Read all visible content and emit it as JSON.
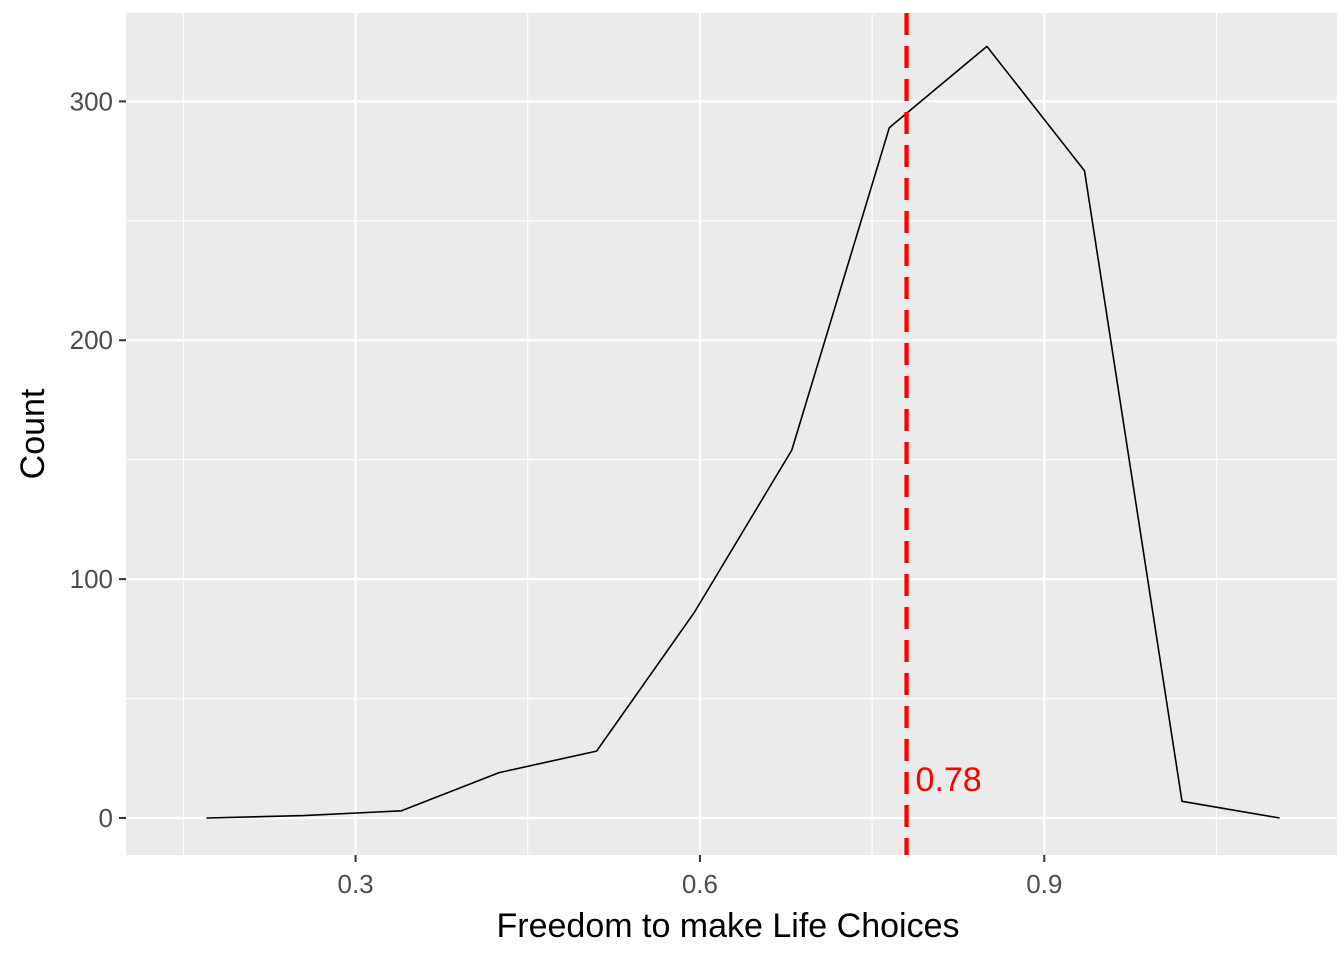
{
  "chart_data": {
    "type": "line",
    "title": "",
    "xlabel": "Freedom to make Life Choices",
    "ylabel": "Count",
    "x": [
      0.17,
      0.255,
      0.34,
      0.425,
      0.51,
      0.595,
      0.68,
      0.765,
      0.85,
      0.935,
      1.02,
      1.105
    ],
    "series": [
      {
        "values": [
          0,
          1,
          3,
          19,
          28,
          86,
          154,
          289,
          323,
          271,
          7,
          0
        ]
      }
    ],
    "xlim": [
      0.1,
      1.155
    ],
    "ylim": [
      -15.5,
      337
    ],
    "x_ticks": [
      0.3,
      0.6,
      0.9
    ],
    "x_tick_labels": [
      "0.3",
      "0.6",
      "0.9"
    ],
    "y_ticks": [
      0,
      100,
      200,
      300
    ],
    "y_tick_labels": [
      "0",
      "100",
      "200",
      "300"
    ],
    "reference_line": {
      "x": 0.78,
      "label": "0.78",
      "style": "dashed",
      "color": "#ff0000"
    },
    "grid": true,
    "legend": "none",
    "colors": {
      "panel": "#ebebeb",
      "grid": "#ffffff",
      "line": "#000000",
      "reference": "#ff0000",
      "tick_text": "#4d4d4d"
    }
  }
}
